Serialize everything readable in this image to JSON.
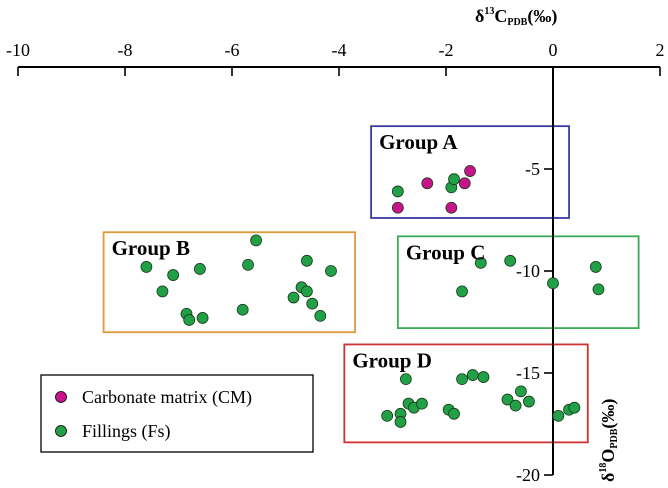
{
  "chart_data": {
    "type": "scatter",
    "title": "",
    "xlabel": {
      "prefix": "δ",
      "sup": "13",
      "main": "C",
      "sub": "PDB",
      "suffix": "(‰)"
    },
    "ylabel": {
      "prefix": "δ",
      "sup": "18",
      "main": "O",
      "sub": "PDB",
      "suffix": "(‰)"
    },
    "xlim": [
      -10,
      2
    ],
    "ylim": [
      -20,
      0
    ],
    "xticks": [
      -10,
      -8,
      -6,
      -4,
      -2,
      0,
      2
    ],
    "xtick_labels": [
      "-10",
      "-8",
      "-6",
      "-4",
      "-2",
      "0",
      "2"
    ],
    "yticks": [
      -5,
      -10,
      -15,
      -20
    ],
    "ytick_labels": [
      "-5",
      "-10",
      "-15",
      "-20"
    ],
    "legend": {
      "position": "bottom-left",
      "entries": [
        {
          "label": "Carbonate matrix (CM)",
          "color": "#c8148c"
        },
        {
          "label": "Fillings (Fs)",
          "color": "#22a048"
        }
      ]
    },
    "groups": [
      {
        "label": "Group A",
        "x_range": [
          -3.4,
          0.3
        ],
        "y_range": [
          -2.9,
          -7.4
        ],
        "color": "#3a3aa0"
      },
      {
        "label": "Group B",
        "x_range": [
          -8.4,
          -3.7
        ],
        "y_range": [
          -8.1,
          -13.0
        ],
        "color": "#e09a3a"
      },
      {
        "label": "Group C",
        "x_range": [
          -2.9,
          1.6
        ],
        "y_range": [
          -8.3,
          -12.8
        ],
        "color": "#3aaa55"
      },
      {
        "label": "Group D",
        "x_range": [
          -3.9,
          0.65
        ],
        "y_range": [
          -13.6,
          -18.4
        ],
        "color": "#cc3333"
      }
    ],
    "series": [
      {
        "name": "Carbonate matrix (CM)",
        "color": "#c8148c",
        "points": [
          [
            -2.9,
            -6.9
          ],
          [
            -2.35,
            -5.7
          ],
          [
            -1.9,
            -6.9
          ],
          [
            -1.65,
            -5.7
          ],
          [
            -1.55,
            -5.1
          ]
        ]
      },
      {
        "name": "Fillings (Fs)",
        "color": "#22a048",
        "points": [
          [
            -2.9,
            -6.1
          ],
          [
            -1.9,
            -5.9
          ],
          [
            -1.85,
            -5.5
          ],
          [
            -7.6,
            -9.8
          ],
          [
            -7.3,
            -11.0
          ],
          [
            -7.1,
            -10.2
          ],
          [
            -6.85,
            -12.1
          ],
          [
            -6.8,
            -12.4
          ],
          [
            -6.6,
            -9.9
          ],
          [
            -6.55,
            -12.3
          ],
          [
            -5.8,
            -11.9
          ],
          [
            -5.7,
            -9.7
          ],
          [
            -5.55,
            -8.5
          ],
          [
            -4.85,
            -11.3
          ],
          [
            -4.7,
            -10.8
          ],
          [
            -4.6,
            -9.5
          ],
          [
            -4.6,
            -11.0
          ],
          [
            -4.5,
            -11.6
          ],
          [
            -4.35,
            -12.2
          ],
          [
            -4.15,
            -10.0
          ],
          [
            -1.7,
            -11.0
          ],
          [
            -1.35,
            -9.6
          ],
          [
            -0.8,
            -9.5
          ],
          [
            0.0,
            -10.6
          ],
          [
            0.8,
            -9.8
          ],
          [
            0.85,
            -10.9
          ],
          [
            -3.1,
            -17.1
          ],
          [
            -2.85,
            -17.0
          ],
          [
            -2.85,
            -17.4
          ],
          [
            -2.75,
            -15.3
          ],
          [
            -2.7,
            -16.5
          ],
          [
            -2.6,
            -16.7
          ],
          [
            -2.45,
            -16.5
          ],
          [
            -1.95,
            -16.8
          ],
          [
            -1.85,
            -17.0
          ],
          [
            -1.7,
            -15.3
          ],
          [
            -1.5,
            -15.1
          ],
          [
            -1.3,
            -15.2
          ],
          [
            -0.85,
            -16.3
          ],
          [
            -0.7,
            -16.6
          ],
          [
            -0.6,
            -15.9
          ],
          [
            -0.45,
            -16.4
          ],
          [
            0.1,
            -17.1
          ],
          [
            0.3,
            -16.8
          ],
          [
            0.4,
            -16.7
          ]
        ]
      }
    ]
  }
}
